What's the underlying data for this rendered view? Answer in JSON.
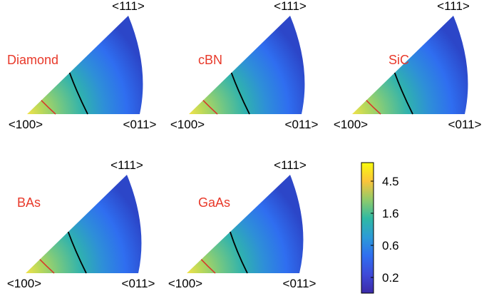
{
  "panels": [
    {
      "material": "Diamond",
      "top_label": "<111>",
      "left_label": "<100>",
      "right_label": "<011>"
    },
    {
      "material": "cBN",
      "top_label": "<111>",
      "left_label": "<100>",
      "right_label": "<011>"
    },
    {
      "material": "SiC",
      "top_label": "<111>",
      "left_label": "<100>",
      "right_label": "<011>"
    },
    {
      "material": "BAs",
      "top_label": "<111>",
      "left_label": "<100>",
      "right_label": "<011>"
    },
    {
      "material": "GaAs",
      "top_label": "<111>",
      "left_label": "<100>",
      "right_label": "<011>"
    }
  ],
  "colorbar": {
    "ticks": [
      "4.5",
      "1.6",
      "0.6",
      "0.2"
    ],
    "colors": [
      "#f9fb0e",
      "#fbc43b",
      "#8fcb6b",
      "#2fb9a4",
      "#2c9bd7",
      "#2f6ef0",
      "#3e4ad8",
      "#3b2aa8"
    ]
  },
  "colors": {
    "material_label": "#e8392a",
    "black_contour": "#000000",
    "red_contour": "#d63a2b",
    "wedge_base": "#2f6ef0",
    "wedge_tip": "#2c46c8",
    "hot_spot": "#f2e24a",
    "warm": "#71c784",
    "cool": "#2fb2ae"
  }
}
